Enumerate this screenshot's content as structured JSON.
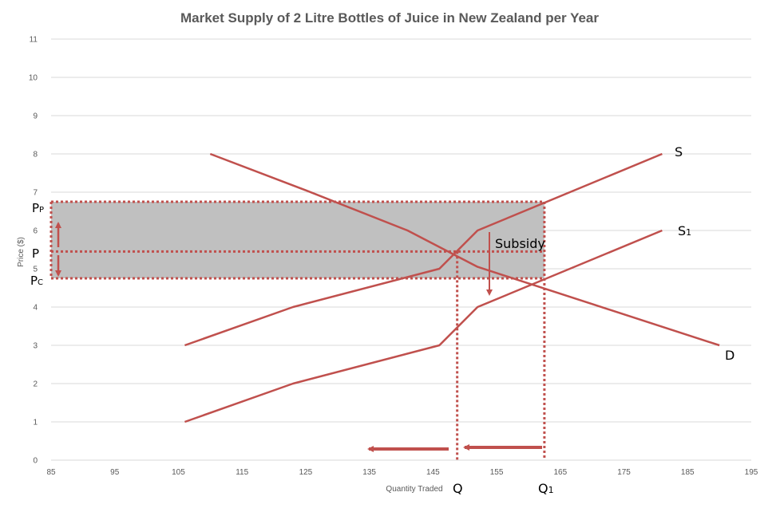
{
  "chart_data": {
    "type": "line",
    "title": "Market Supply of 2 Litre Bottles of Juice in New Zealand per Year",
    "xlabel": "Quantity Traded",
    "ylabel": "Price ($)",
    "xlim": [
      85,
      195
    ],
    "ylim": [
      0,
      11
    ],
    "x_ticks": [
      "85",
      "95",
      "105",
      "115",
      "125",
      "135",
      "145",
      "155",
      "165",
      "175",
      "185",
      "195"
    ],
    "y_ticks": [
      "0",
      "1",
      "2",
      "3",
      "4",
      "5",
      "6",
      "7",
      "8",
      "9",
      "10",
      "11"
    ],
    "grid": true,
    "series": [
      {
        "name": "S",
        "x": [
          106,
          123,
          146,
          152,
          181
        ],
        "y": [
          3,
          4,
          5,
          6,
          8
        ]
      },
      {
        "name": "S1",
        "x": [
          106,
          123,
          146,
          152,
          181
        ],
        "y": [
          1,
          2,
          3,
          4,
          6
        ]
      },
      {
        "name": "D",
        "x": [
          110,
          125,
          141,
          152,
          190
        ],
        "y": [
          8,
          7.05,
          6,
          5.05,
          3
        ]
      }
    ],
    "series_color": "#c0504d",
    "subsidy_area": {
      "x_range": [
        85,
        162.5
      ],
      "y_range": [
        4.75,
        6.75
      ],
      "fill": "#c0c0c0"
    },
    "reference_lines": [
      {
        "label": "Pp",
        "axis": "y",
        "value": 6.75
      },
      {
        "label": "P",
        "axis": "y",
        "value": 5.45
      },
      {
        "label": "Pc",
        "axis": "y",
        "value": 4.75
      },
      {
        "label": "Q",
        "axis": "x",
        "value": 148.8
      },
      {
        "label": "Q1",
        "axis": "x",
        "value": 162.5
      }
    ],
    "annotations": {
      "S_label": "S",
      "S1_label": "S",
      "S1_sub": "1",
      "D_label": "D",
      "subsidy": "Subsidy",
      "Pp": "P",
      "Pp_sub": "P",
      "P": "P",
      "Pc": "P",
      "Pc_sub": "C",
      "Q": "Q",
      "Q1": "Q",
      "Q1_sub": "1"
    }
  }
}
